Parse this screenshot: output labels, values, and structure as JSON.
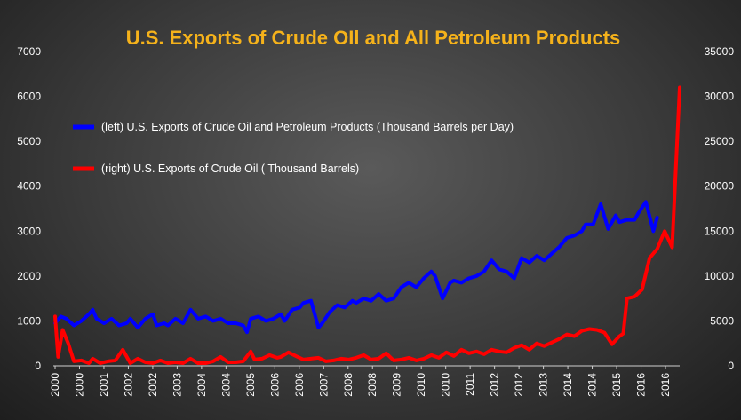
{
  "chart_data": {
    "type": "line",
    "title": "U.S. Exports of Crude OIl and All Petroleum Products",
    "xlabel": "",
    "ylabel": "",
    "y_left_lim": [
      0,
      7000
    ],
    "y_right_lim": [
      0,
      35000
    ],
    "y_left_ticks": [
      "0",
      "1000",
      "2000",
      "3000",
      "4000",
      "5000",
      "6000",
      "7000"
    ],
    "y_right_ticks": [
      "0",
      "5000",
      "10000",
      "15000",
      "20000",
      "25000",
      "30000",
      "35000"
    ],
    "x_tick_labels": [
      "2000",
      "2000",
      "2001",
      "2002",
      "2002",
      "2003",
      "2004",
      "2004",
      "2005",
      "2006",
      "2006",
      "2007",
      "2008",
      "2008",
      "2009",
      "2010",
      "2010",
      "2011",
      "2012",
      "2012",
      "2013",
      "2014",
      "2014",
      "2015",
      "2016",
      "2016"
    ],
    "x_range_years": [
      2000.0,
      2016.6
    ],
    "grid": false,
    "legend_position": "upper-left",
    "series": [
      {
        "name": "(left) U.S. Exports of Crude Oil and Petroleum Products (Thousand Barrels per Day)",
        "axis": "left",
        "color": "#0000ff",
        "points": [
          [
            2000.0,
            950
          ],
          [
            2000.15,
            1100
          ],
          [
            2000.3,
            1050
          ],
          [
            2000.5,
            900
          ],
          [
            2000.7,
            1000
          ],
          [
            2000.9,
            1150
          ],
          [
            2001.0,
            1250
          ],
          [
            2001.1,
            1050
          ],
          [
            2001.3,
            950
          ],
          [
            2001.5,
            1050
          ],
          [
            2001.7,
            900
          ],
          [
            2001.9,
            950
          ],
          [
            2002.0,
            1050
          ],
          [
            2002.2,
            850
          ],
          [
            2002.4,
            1050
          ],
          [
            2002.6,
            1150
          ],
          [
            2002.7,
            900
          ],
          [
            2002.9,
            950
          ],
          [
            2003.0,
            900
          ],
          [
            2003.2,
            1050
          ],
          [
            2003.4,
            950
          ],
          [
            2003.6,
            1250
          ],
          [
            2003.8,
            1050
          ],
          [
            2004.0,
            1100
          ],
          [
            2004.2,
            1000
          ],
          [
            2004.4,
            1050
          ],
          [
            2004.6,
            950
          ],
          [
            2004.8,
            950
          ],
          [
            2005.0,
            900
          ],
          [
            2005.1,
            750
          ],
          [
            2005.2,
            1050
          ],
          [
            2005.4,
            1100
          ],
          [
            2005.6,
            1000
          ],
          [
            2005.8,
            1050
          ],
          [
            2006.0,
            1150
          ],
          [
            2006.1,
            1000
          ],
          [
            2006.3,
            1250
          ],
          [
            2006.5,
            1300
          ],
          [
            2006.6,
            1400
          ],
          [
            2006.8,
            1450
          ],
          [
            2007.0,
            850
          ],
          [
            2007.1,
            950
          ],
          [
            2007.3,
            1200
          ],
          [
            2007.5,
            1350
          ],
          [
            2007.7,
            1300
          ],
          [
            2007.9,
            1450
          ],
          [
            2008.0,
            1400
          ],
          [
            2008.2,
            1500
          ],
          [
            2008.4,
            1450
          ],
          [
            2008.6,
            1600
          ],
          [
            2008.8,
            1450
          ],
          [
            2009.0,
            1500
          ],
          [
            2009.2,
            1750
          ],
          [
            2009.4,
            1850
          ],
          [
            2009.6,
            1750
          ],
          [
            2009.8,
            1950
          ],
          [
            2010.0,
            2100
          ],
          [
            2010.1,
            2000
          ],
          [
            2010.3,
            1500
          ],
          [
            2010.5,
            1850
          ],
          [
            2010.6,
            1900
          ],
          [
            2010.8,
            1850
          ],
          [
            2011.0,
            1950
          ],
          [
            2011.2,
            2000
          ],
          [
            2011.4,
            2100
          ],
          [
            2011.6,
            2350
          ],
          [
            2011.8,
            2150
          ],
          [
            2012.0,
            2100
          ],
          [
            2012.2,
            1950
          ],
          [
            2012.4,
            2400
          ],
          [
            2012.6,
            2300
          ],
          [
            2012.8,
            2450
          ],
          [
            2013.0,
            2350
          ],
          [
            2013.2,
            2500
          ],
          [
            2013.4,
            2650
          ],
          [
            2013.6,
            2850
          ],
          [
            2013.8,
            2900
          ],
          [
            2014.0,
            3000
          ],
          [
            2014.1,
            3150
          ],
          [
            2014.3,
            3150
          ],
          [
            2014.5,
            3600
          ],
          [
            2014.7,
            3050
          ],
          [
            2014.9,
            3350
          ],
          [
            2015.0,
            3200
          ],
          [
            2015.2,
            3250
          ],
          [
            2015.4,
            3250
          ],
          [
            2015.5,
            3400
          ],
          [
            2015.7,
            3650
          ],
          [
            2015.9,
            3000
          ],
          [
            2016.0,
            3300
          ]
        ]
      },
      {
        "name": "(right) U.S. Exports of Crude Oil ( Thousand Barrels)",
        "axis": "right",
        "color": "#ff0000",
        "points": [
          [
            2000.0,
            5500
          ],
          [
            2000.08,
            1000
          ],
          [
            2000.2,
            4000
          ],
          [
            2000.35,
            2500
          ],
          [
            2000.5,
            500
          ],
          [
            2000.7,
            600
          ],
          [
            2000.9,
            300
          ],
          [
            2001.0,
            800
          ],
          [
            2001.2,
            300
          ],
          [
            2001.4,
            500
          ],
          [
            2001.6,
            600
          ],
          [
            2001.8,
            1800
          ],
          [
            2002.0,
            300
          ],
          [
            2002.2,
            800
          ],
          [
            2002.4,
            400
          ],
          [
            2002.6,
            300
          ],
          [
            2002.8,
            600
          ],
          [
            2003.0,
            300
          ],
          [
            2003.2,
            400
          ],
          [
            2003.4,
            300
          ],
          [
            2003.6,
            800
          ],
          [
            2003.8,
            300
          ],
          [
            2004.0,
            300
          ],
          [
            2004.2,
            500
          ],
          [
            2004.4,
            1000
          ],
          [
            2004.6,
            400
          ],
          [
            2004.8,
            400
          ],
          [
            2005.0,
            500
          ],
          [
            2005.2,
            1600
          ],
          [
            2005.3,
            700
          ],
          [
            2005.5,
            800
          ],
          [
            2005.7,
            1200
          ],
          [
            2005.9,
            900
          ],
          [
            2006.0,
            1000
          ],
          [
            2006.2,
            1500
          ],
          [
            2006.4,
            1100
          ],
          [
            2006.6,
            700
          ],
          [
            2006.8,
            800
          ],
          [
            2007.0,
            900
          ],
          [
            2007.2,
            500
          ],
          [
            2007.4,
            600
          ],
          [
            2007.6,
            800
          ],
          [
            2007.8,
            700
          ],
          [
            2008.0,
            900
          ],
          [
            2008.2,
            1200
          ],
          [
            2008.4,
            700
          ],
          [
            2008.6,
            800
          ],
          [
            2008.8,
            1400
          ],
          [
            2009.0,
            600
          ],
          [
            2009.2,
            700
          ],
          [
            2009.4,
            900
          ],
          [
            2009.6,
            600
          ],
          [
            2009.8,
            800
          ],
          [
            2010.0,
            1200
          ],
          [
            2010.2,
            900
          ],
          [
            2010.4,
            1500
          ],
          [
            2010.6,
            1100
          ],
          [
            2010.8,
            1800
          ],
          [
            2011.0,
            1400
          ],
          [
            2011.2,
            1600
          ],
          [
            2011.4,
            1300
          ],
          [
            2011.6,
            1800
          ],
          [
            2011.8,
            1600
          ],
          [
            2012.0,
            1500
          ],
          [
            2012.2,
            2000
          ],
          [
            2012.4,
            2300
          ],
          [
            2012.6,
            1800
          ],
          [
            2012.8,
            2500
          ],
          [
            2013.0,
            2200
          ],
          [
            2013.2,
            2600
          ],
          [
            2013.4,
            3000
          ],
          [
            2013.6,
            3500
          ],
          [
            2013.8,
            3300
          ],
          [
            2014.0,
            3900
          ],
          [
            2014.2,
            4100
          ],
          [
            2014.4,
            4000
          ],
          [
            2014.6,
            3700
          ],
          [
            2014.8,
            2400
          ],
          [
            2015.0,
            3300
          ],
          [
            2015.1,
            3600
          ],
          [
            2015.2,
            7500
          ],
          [
            2015.4,
            7700
          ],
          [
            2015.6,
            8500
          ],
          [
            2015.8,
            12000
          ],
          [
            2016.0,
            13000
          ],
          [
            2016.2,
            15000
          ],
          [
            2016.4,
            13200
          ],
          [
            2016.6,
            31000
          ]
        ]
      }
    ]
  }
}
